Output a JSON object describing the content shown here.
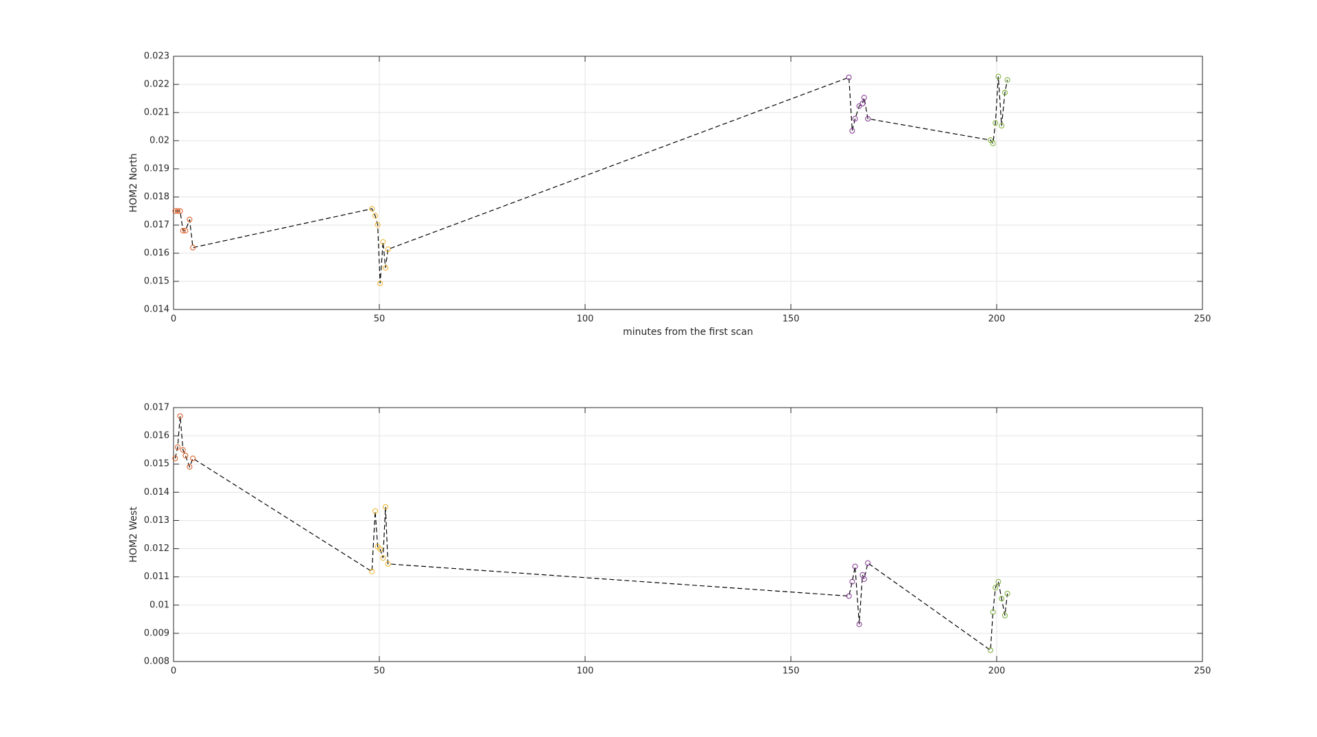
{
  "chart_data": [
    {
      "type": "scatter",
      "ylabel": "HOM2 North",
      "xlabel": "minutes from the first scan",
      "xlim": [
        0,
        250
      ],
      "xticks": [
        0,
        50,
        100,
        150,
        200,
        250
      ],
      "ylim": [
        0.014,
        0.023
      ],
      "yticks": [
        0.014,
        0.015,
        0.016,
        0.017,
        0.018,
        0.019,
        0.02,
        0.021,
        0.022,
        0.023
      ],
      "grid": true,
      "connect": {
        "color": "#000000",
        "dash": "dashed"
      },
      "series": [
        {
          "color": "#d95319",
          "x": [
            0.4,
            1.0,
            1.6,
            2.3,
            2.9,
            3.9,
            4.7
          ],
          "values": [
            0.0175,
            0.0175,
            0.0175,
            0.0168,
            0.0168,
            0.0172,
            0.0162
          ]
        },
        {
          "color": "#edb120",
          "x": [
            48.2,
            49.0,
            49.6,
            50.2,
            50.9,
            51.5,
            52.1
          ],
          "values": [
            0.01758,
            0.01733,
            0.01701,
            0.01493,
            0.0164,
            0.01548,
            0.01614
          ]
        },
        {
          "color": "#7e2f8e",
          "x": [
            164.1,
            164.9,
            165.6,
            166.6,
            167.4,
            167.8,
            168.7
          ],
          "values": [
            0.02225,
            0.02035,
            0.02078,
            0.02123,
            0.02132,
            0.02153,
            0.02078
          ]
        },
        {
          "color": "#77ac30",
          "x": [
            198.5,
            199.1,
            199.7,
            200.4,
            201.2,
            202.0,
            202.6
          ],
          "values": [
            0.02002,
            0.0199,
            0.02063,
            0.02228,
            0.02053,
            0.02171,
            0.02216
          ]
        }
      ]
    },
    {
      "type": "scatter",
      "ylabel": "HOM2 West",
      "xlim": [
        0,
        250
      ],
      "xticks": [
        0,
        50,
        100,
        150,
        200,
        250
      ],
      "ylim": [
        0.008,
        0.017
      ],
      "yticks": [
        0.008,
        0.009,
        0.01,
        0.011,
        0.012,
        0.013,
        0.014,
        0.015,
        0.016,
        0.017
      ],
      "grid": true,
      "connect": {
        "color": "#000000",
        "dash": "dashed"
      },
      "series": [
        {
          "color": "#d95319",
          "x": [
            0.4,
            1.0,
            1.6,
            2.3,
            2.9,
            3.9,
            4.7
          ],
          "values": [
            0.0152,
            0.0156,
            0.0167,
            0.0155,
            0.0153,
            0.0149,
            0.0152
          ]
        },
        {
          "color": "#edb120",
          "x": [
            48.2,
            49.0,
            49.6,
            50.2,
            50.9,
            51.5,
            52.1
          ],
          "values": [
            0.01119,
            0.01333,
            0.01207,
            0.01198,
            0.01167,
            0.01348,
            0.01146
          ]
        },
        {
          "color": "#7e2f8e",
          "x": [
            164.1,
            164.9,
            165.6,
            166.6,
            167.4,
            167.8,
            168.7
          ],
          "values": [
            0.01032,
            0.01083,
            0.01137,
            0.00932,
            0.01107,
            0.01092,
            0.01149
          ]
        },
        {
          "color": "#77ac30",
          "x": [
            198.5,
            199.1,
            199.7,
            200.4,
            201.2,
            202.0,
            202.6
          ],
          "values": [
            0.0084,
            0.00975,
            0.01062,
            0.01083,
            0.01023,
            0.00963,
            0.01041
          ]
        }
      ]
    }
  ]
}
